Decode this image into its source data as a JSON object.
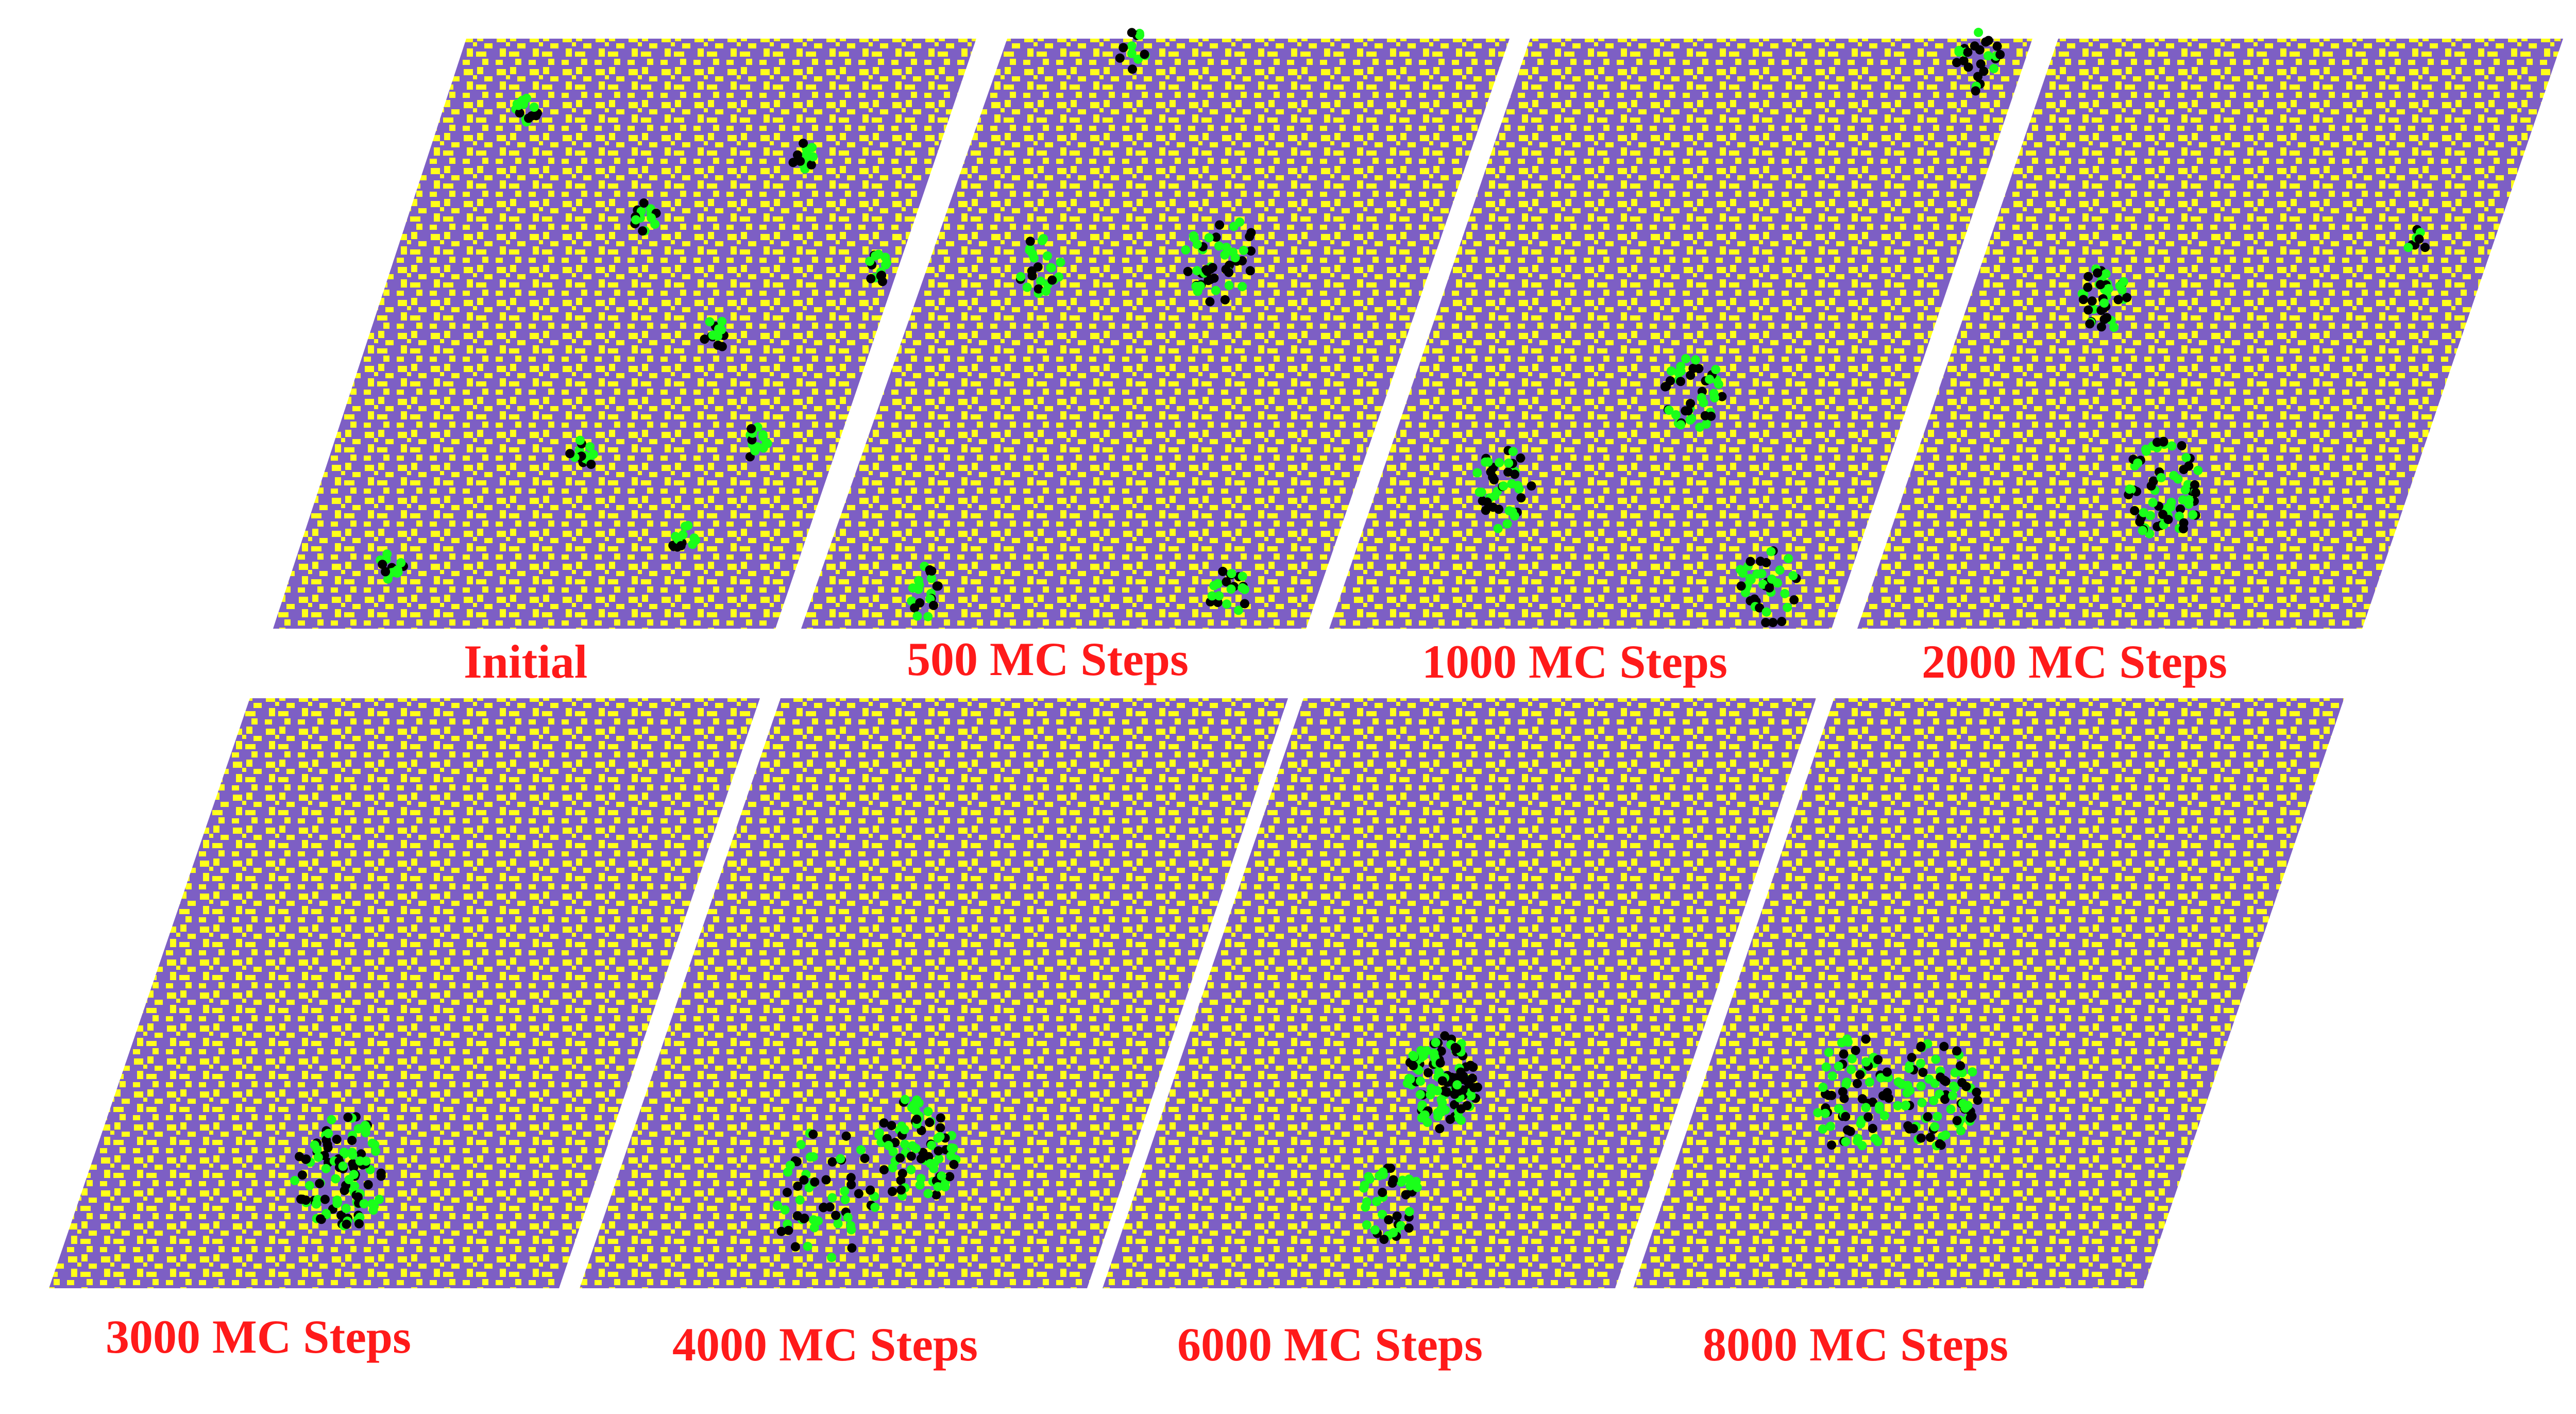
{
  "figure": {
    "colors": {
      "background": "#ffffff",
      "matrix": "#7d5fc4",
      "phase_a": "#ffff1a",
      "phase_b": "#1aff1a",
      "phase_c": "#000000",
      "label": "#ff1a1a"
    },
    "panels": [
      {
        "label": "Initial"
      },
      {
        "label": "500 MC Steps"
      },
      {
        "label": "1000 MC Steps"
      },
      {
        "label": "2000 MC Steps"
      },
      {
        "label": "3000 MC Steps"
      },
      {
        "label": "4000 MC Steps"
      },
      {
        "label": "6000 MC Steps"
      },
      {
        "label": "8000 MC Steps"
      }
    ]
  }
}
